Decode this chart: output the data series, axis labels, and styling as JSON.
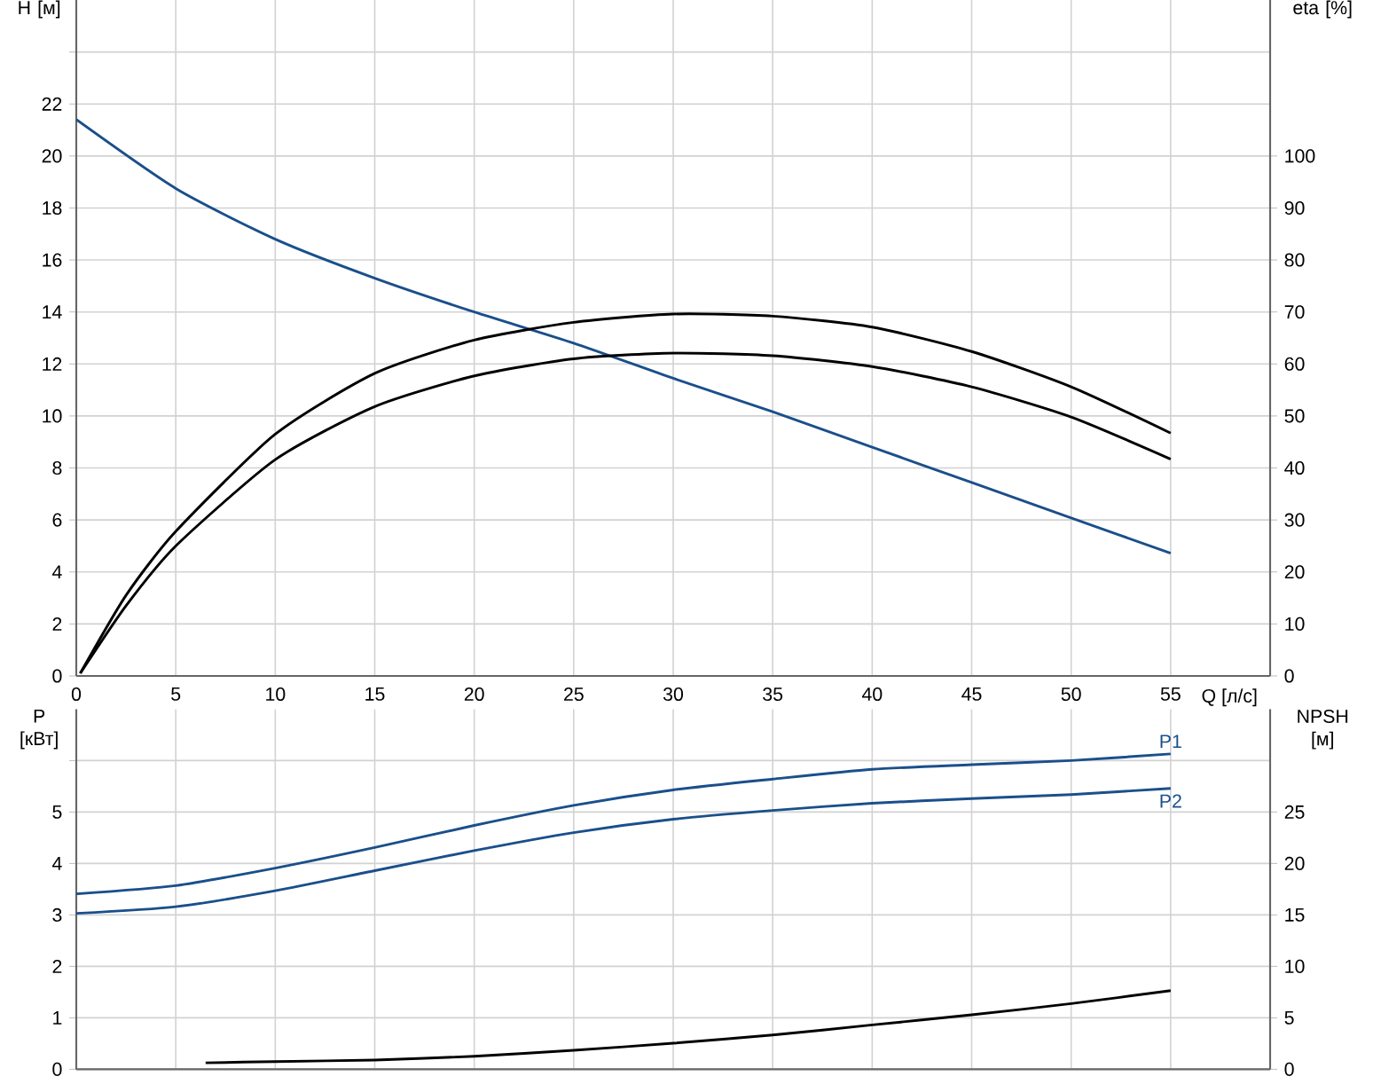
{
  "chart_data": [
    {
      "type": "line",
      "xlabel": "Q [л/с]",
      "ylabel": "H [м]",
      "y2label": "eta [%]",
      "xlim": [
        0,
        60
      ],
      "xticks": [
        0,
        5,
        10,
        15,
        20,
        25,
        30,
        35,
        40,
        45,
        50,
        55,
        {
          "value": 60,
          "label": null
        }
      ],
      "ylim": [
        0,
        26
      ],
      "yticks": [
        0,
        2,
        4,
        6,
        8,
        10,
        12,
        14,
        16,
        18,
        20,
        22,
        {
          "value": 24,
          "label": null
        }
      ],
      "y2lim": [
        0,
        130
      ],
      "y2ticks": [
        0,
        10,
        20,
        30,
        40,
        50,
        60,
        70,
        80,
        90,
        100
      ],
      "grid": true,
      "series": [
        {
          "color": "#1a4f8b",
          "x": [
            0,
            5,
            10,
            15,
            20,
            25,
            30,
            35,
            40,
            45,
            50,
            55
          ],
          "values": [
            21.4,
            18.75,
            16.8,
            15.3,
            14.0,
            12.8,
            11.45,
            10.16,
            8.8,
            7.44,
            6.08,
            4.72
          ]
        },
        {
          "color": "#000000",
          "axis": "y2",
          "x": [
            0.2,
            2.5,
            5,
            10,
            15,
            20,
            25,
            30,
            35,
            40,
            45,
            50,
            55
          ],
          "values": [
            0.5,
            15.5,
            27.8,
            46.5,
            58.2,
            64.6,
            68,
            69.6,
            69.2,
            67.1,
            62.4,
            55.6,
            46.7
          ]
        },
        {
          "color": "#000000",
          "axis": "y2",
          "x": [
            0.2,
            2.5,
            5,
            10,
            15,
            20,
            25,
            30,
            35,
            40,
            45,
            50,
            55
          ],
          "values": [
            0.5,
            13.5,
            25,
            41.6,
            51.8,
            57.7,
            61,
            62.1,
            61.6,
            59.5,
            55.6,
            49.8,
            41.7
          ]
        }
      ]
    },
    {
      "type": "line",
      "ylabel": "P [кВт]",
      "y2label": "NPSH [м]",
      "tick_labels": "y",
      "xlim": [
        0,
        60
      ],
      "xticks": [
        0,
        5,
        10,
        15,
        20,
        25,
        30,
        35,
        40,
        45,
        50,
        55,
        {
          "value": 60,
          "label": null
        }
      ],
      "ylim": [
        0,
        7
      ],
      "yticks": [
        0,
        1,
        2,
        3,
        4,
        5,
        {
          "value": 6,
          "label": null
        }
      ],
      "y2lim": [
        0,
        35
      ],
      "y2ticks": [
        0,
        5,
        10,
        15,
        20,
        25
      ],
      "grid": true,
      "series": [
        {
          "name": "P1",
          "color": "#1a4f8b",
          "x": [
            0,
            5,
            10,
            15,
            20,
            25,
            30,
            35,
            40,
            45,
            50,
            55
          ],
          "values": [
            3.41,
            3.57,
            3.91,
            4.31,
            4.74,
            5.13,
            5.43,
            5.64,
            5.83,
            5.92,
            6.0,
            6.13
          ]
        },
        {
          "name": "P2",
          "color": "#1a4f8b",
          "x": [
            0,
            5,
            10,
            15,
            20,
            25,
            30,
            35,
            40,
            45,
            50,
            55
          ],
          "values": [
            3.03,
            3.16,
            3.47,
            3.86,
            4.25,
            4.6,
            4.86,
            5.03,
            5.17,
            5.26,
            5.34,
            5.46
          ]
        },
        {
          "color": "#000000",
          "axis": "y2",
          "x": [
            6.5,
            10,
            15,
            20,
            25,
            30,
            35,
            40,
            45,
            50,
            55
          ],
          "values": [
            0.63,
            0.75,
            0.9,
            1.26,
            1.84,
            2.53,
            3.33,
            4.31,
            5.29,
            6.38,
            7.64
          ]
        }
      ]
    }
  ]
}
